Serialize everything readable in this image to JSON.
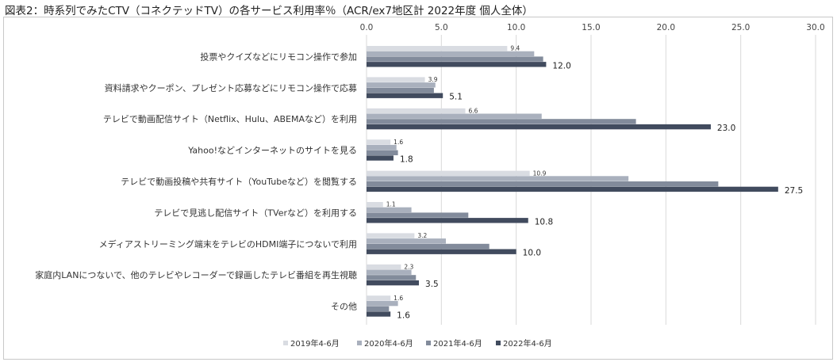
{
  "chart_data": {
    "type": "bar",
    "orientation": "horizontal",
    "title": "図表2：時系列でみたCTV（コネクテッドTV）の各サービス利用率％（ACR/ex7地区計 2022年度 個人全体）",
    "xlim": [
      0,
      30
    ],
    "x_ticks": [
      "0.0",
      "5.0",
      "10.0",
      "15.0",
      "20.0",
      "25.0",
      "30.0"
    ],
    "x_tick_values": [
      0,
      5,
      10,
      15,
      20,
      25,
      30
    ],
    "axis_position": "top",
    "grid": true,
    "legend_position": "bottom",
    "categories": [
      "投票やクイズなどにリモコン操作で参加",
      "資料請求やクーポン、プレゼント応募などにリモコン操作で応募",
      "テレビで動画配信サイト（Netflix、Hulu、ABEMAなど）を利用",
      "Yahoo!などインターネットのサイトを見る",
      "テレビで動画投稿や共有サイト（YouTubeなど）を閲覧する",
      "テレビで見逃し配信サイト（TVerなど）を利用する",
      "メディアストリーミング端末をテレビのHDMI端子につないで利用",
      "家庭内LANにつないで、他のテレビやレコーダーで録画したテレビ番組を再生視聴",
      "その他"
    ],
    "series": [
      {
        "name": "2019年4-6月",
        "color": "#d9dce2",
        "values": [
          9.4,
          3.9,
          6.6,
          1.6,
          10.9,
          1.1,
          3.2,
          2.3,
          1.6
        ],
        "labels": [
          "9.4",
          "3.9",
          "6.6",
          "1.6",
          "10.9",
          "1.1",
          "3.2",
          "2.3",
          "1.6"
        ]
      },
      {
        "name": "2020年4-6月",
        "color": "#a9b0bd",
        "values": [
          11.2,
          4.6,
          11.7,
          2.0,
          17.5,
          3.0,
          5.3,
          3.0,
          2.1
        ],
        "labels": []
      },
      {
        "name": "2021年4-6月",
        "color": "#828b9b",
        "values": [
          11.8,
          4.5,
          18.0,
          2.1,
          23.5,
          6.8,
          8.2,
          3.3,
          1.5
        ],
        "labels": []
      },
      {
        "name": "2022年4-6月",
        "color": "#414b5e",
        "values": [
          12.0,
          5.1,
          23.0,
          1.8,
          27.5,
          10.8,
          10.0,
          3.5,
          1.6
        ],
        "labels": [
          "12.0",
          "5.1",
          "23.0",
          "1.8",
          "27.5",
          "10.8",
          "10.0",
          "3.5",
          "1.6"
        ]
      }
    ]
  }
}
